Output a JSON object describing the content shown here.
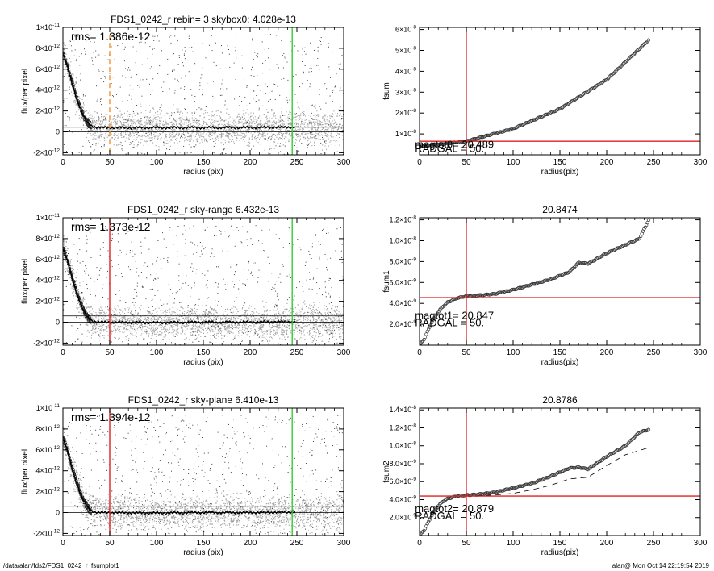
{
  "footer": {
    "left": "/data/alan/fds2/FDS1_0242_r_fsumplot1",
    "right": "alan@  Mon Oct 14 22:19:54 2019"
  },
  "colors": {
    "profile_points": "#a0a0a0",
    "outlier_points": "#404040",
    "sky_radius_line": "#dd2222",
    "dashed_radius_line": "#f0942a",
    "outer_radius_line": "#33cc33",
    "fsum_points": "#333333",
    "crosshair": "#dd2222"
  },
  "chart_data": [
    {
      "type": "scatter",
      "title": "FDS1_0242_r rebin= 3    skybox0:  4.028e-13",
      "annotation": "rms= 1.386e-12",
      "xlabel": "radius (pix)",
      "ylabel": "flux/per pixel",
      "xlim": [
        0,
        300
      ],
      "ylim": [
        -2.2e-12,
        1e-11
      ],
      "xticks": [
        0,
        50,
        100,
        150,
        200,
        250,
        300
      ],
      "xtick_labels": [
        "0",
        "50",
        "100",
        "150",
        "200",
        "250",
        "300"
      ],
      "yticks": [
        -2e-12,
        0,
        2e-12,
        4e-12,
        6e-12,
        8e-12,
        1e-11
      ],
      "ytick_labels": [
        {
          "base": "-2×10",
          "exp": "-12"
        },
        {
          "base": "0",
          "exp": ""
        },
        {
          "base": "2×10",
          "exp": "-12"
        },
        {
          "base": "4×10",
          "exp": "-12"
        },
        {
          "base": "6×10",
          "exp": "-12"
        },
        {
          "base": "8×10",
          "exp": "-12"
        },
        {
          "base": "1×10",
          "exp": "-11"
        }
      ],
      "profile": {
        "radius": [
          0,
          3,
          6,
          10,
          14,
          18,
          22,
          26,
          30,
          35,
          40,
          50,
          100,
          150,
          200,
          245
        ],
        "flux": [
          7.4e-12,
          6.8e-12,
          5.8e-12,
          4.6e-12,
          3.4e-12,
          2.4e-12,
          1.5e-12,
          9e-13,
          6e-13,
          4.5e-13,
          4e-13,
          4e-13,
          4e-13,
          4e-13,
          4.2e-13,
          4.5e-13
        ]
      },
      "profile_wobble": true,
      "sky_level": 4.028e-13,
      "vertical_lines": [
        {
          "x": 50,
          "style": "dashed",
          "color": "#f0942a",
          "top": 9.3e-12
        },
        {
          "x": 245,
          "style": "solid",
          "color": "#33cc33"
        }
      ],
      "horizontal_lines": [
        4.5e-13,
        0.0
      ],
      "grey_band_max": 250,
      "grey_band_end": 300,
      "grey_spread": 1.6e-12,
      "grey_extra_spread_after": 250
    },
    {
      "type": "scatter",
      "title": "",
      "xlabel": "radius(pix)",
      "ylabel": "fsum",
      "xlim": [
        0,
        300
      ],
      "ylim": [
        0,
        6.1e-08
      ],
      "xticks": [
        0,
        50,
        100,
        150,
        200,
        250,
        300
      ],
      "xtick_labels": [
        "0",
        "50",
        "100",
        "150",
        "200",
        "250",
        "300"
      ],
      "yticks": [
        1e-08,
        2e-08,
        3e-08,
        4e-08,
        5e-08,
        6e-08
      ],
      "ytick_labels": [
        {
          "base": "1×10",
          "exp": "-8"
        },
        {
          "base": "2×10",
          "exp": "-8"
        },
        {
          "base": "3×10",
          "exp": "-8"
        },
        {
          "base": "4×10",
          "exp": "-8"
        },
        {
          "base": "5×10",
          "exp": "-8"
        },
        {
          "base": "6×10",
          "exp": "-8"
        }
      ],
      "curve": {
        "x": [
          0,
          20,
          50,
          100,
          150,
          200,
          245
        ],
        "y": [
          4.2e-09,
          5e-09,
          6.5e-09,
          1.25e-08,
          2.2e-08,
          3.6e-08,
          5.5e-08
        ]
      },
      "crosshair": {
        "x": 50,
        "y": 6.5e-09
      },
      "annotations": [
        {
          "text": "magtot0=  20.489",
          "x": -5,
          "y": 3.2e-09
        },
        {
          "text": "RADGAL =    50.",
          "x": -5,
          "y": 1.4e-09
        }
      ]
    },
    {
      "type": "scatter",
      "title": "FDS1_0242_r sky-range  6.432e-13",
      "annotation": "rms= 1.373e-12",
      "xlabel": "radius (pix)",
      "ylabel": "flux/per pixel",
      "xlim": [
        0,
        300
      ],
      "ylim": [
        -2.2e-12,
        1e-11
      ],
      "xticks": [
        0,
        50,
        100,
        150,
        200,
        250,
        300
      ],
      "xtick_labels": [
        "0",
        "50",
        "100",
        "150",
        "200",
        "250",
        "300"
      ],
      "yticks": [
        -2e-12,
        0,
        2e-12,
        4e-12,
        6e-12,
        8e-12,
        1e-11
      ],
      "ytick_labels": [
        {
          "base": "-2×10",
          "exp": "-12"
        },
        {
          "base": "0",
          "exp": ""
        },
        {
          "base": "2×10",
          "exp": "-12"
        },
        {
          "base": "4×10",
          "exp": "-12"
        },
        {
          "base": "6×10",
          "exp": "-12"
        },
        {
          "base": "8×10",
          "exp": "-12"
        },
        {
          "base": "1×10",
          "exp": "-11"
        }
      ],
      "profile": {
        "radius": [
          0,
          3,
          6,
          10,
          14,
          18,
          22,
          26,
          30,
          35,
          40,
          50,
          100,
          150,
          200,
          245
        ],
        "flux": [
          7e-12,
          6.4e-12,
          5.4e-12,
          4.2e-12,
          3e-12,
          2e-12,
          1.1e-12,
          5e-13,
          2e-13,
          5e-14,
          0.0,
          0.0,
          -5e-14,
          0.0,
          0.0,
          5e-14
        ]
      },
      "profile_wobble": true,
      "sky_level": 6.432e-13,
      "vertical_lines": [
        {
          "x": 50,
          "style": "solid",
          "color": "#dd2222"
        },
        {
          "x": 245,
          "style": "solid",
          "color": "#33cc33"
        }
      ],
      "horizontal_lines": [
        6e-13,
        0.0
      ],
      "grey_band_max": 250,
      "grey_band_end": 300,
      "grey_spread": 1.6e-12,
      "grey_extra_spread_after": 250
    },
    {
      "type": "scatter",
      "title": "20.8474",
      "xlabel": "radius(pix)",
      "ylabel": "fsum1",
      "xlim": [
        0,
        300
      ],
      "ylim": [
        0,
        1.22e-08
      ],
      "xticks": [
        0,
        50,
        100,
        150,
        200,
        250,
        300
      ],
      "xtick_labels": [
        "0",
        "50",
        "100",
        "150",
        "200",
        "250",
        "300"
      ],
      "yticks": [
        2e-09,
        4e-09,
        6e-09,
        8e-09,
        1e-08,
        1.2e-08
      ],
      "ytick_labels": [
        {
          "base": "2.0×10",
          "exp": "-9"
        },
        {
          "base": "4.0×10",
          "exp": "-9"
        },
        {
          "base": "6.0×10",
          "exp": "-9"
        },
        {
          "base": "8.0×10",
          "exp": "-9"
        },
        {
          "base": "1.0×10",
          "exp": "-8"
        },
        {
          "base": "1.2×10",
          "exp": "-8"
        }
      ],
      "curve": {
        "x": [
          0,
          5,
          10,
          15,
          20,
          25,
          30,
          40,
          50,
          60,
          80,
          100,
          120,
          140,
          160,
          170,
          180,
          200,
          220,
          235,
          245
        ],
        "y": [
          0,
          6e-10,
          1.6e-09,
          2.5e-09,
          3.2e-09,
          3.7e-09,
          4.1e-09,
          4.5e-09,
          4.7e-09,
          4.75e-09,
          4.9e-09,
          5.3e-09,
          5.8e-09,
          6.3e-09,
          7e-09,
          7.9e-09,
          7.8e-09,
          8.8e-09,
          9.6e-09,
          1.02e-08,
          1.2e-08
        ]
      },
      "crosshair": {
        "x": 50,
        "y": 4.55e-09
      },
      "annotations": [
        {
          "text": "magtot1=  20.847",
          "x": -5,
          "y": 2.5e-09
        },
        {
          "text": "RADGAL =    50.",
          "x": -5,
          "y": 1.8e-09
        }
      ]
    },
    {
      "type": "scatter",
      "title": "FDS1_0242_r sky-plane  6.410e-13",
      "annotation": "rms= 1.394e-12",
      "xlabel": "radius (pix)",
      "ylabel": "flux/per pixel",
      "xlim": [
        0,
        300
      ],
      "ylim": [
        -2.2e-12,
        1e-11
      ],
      "xticks": [
        0,
        50,
        100,
        150,
        200,
        250,
        300
      ],
      "xtick_labels": [
        "0",
        "50",
        "100",
        "150",
        "200",
        "250",
        "300"
      ],
      "yticks": [
        -2e-12,
        0,
        2e-12,
        4e-12,
        6e-12,
        8e-12,
        1e-11
      ],
      "ytick_labels": [
        {
          "base": "-2×10",
          "exp": "-12"
        },
        {
          "base": "0",
          "exp": ""
        },
        {
          "base": "2×10",
          "exp": "-12"
        },
        {
          "base": "4×10",
          "exp": "-12"
        },
        {
          "base": "6×10",
          "exp": "-12"
        },
        {
          "base": "8×10",
          "exp": "-12"
        },
        {
          "base": "1×10",
          "exp": "-11"
        }
      ],
      "profile": {
        "radius": [
          0,
          3,
          6,
          10,
          14,
          18,
          22,
          26,
          30,
          35,
          40,
          50,
          100,
          150,
          200,
          245
        ],
        "flux": [
          7e-12,
          6.4e-12,
          5.4e-12,
          4.2e-12,
          3e-12,
          2e-12,
          1.1e-12,
          5e-13,
          2e-13,
          5e-14,
          0.0,
          0.0,
          -5e-14,
          0.0,
          0.0,
          5e-14
        ]
      },
      "profile_wobble": true,
      "sky_level": 6.41e-13,
      "vertical_lines": [
        {
          "x": 50,
          "style": "solid",
          "color": "#dd2222"
        },
        {
          "x": 245,
          "style": "solid",
          "color": "#33cc33"
        }
      ],
      "horizontal_lines": [
        6e-13,
        0.0
      ],
      "grey_band_max": 250,
      "grey_band_end": 300,
      "grey_spread": 1.6e-12,
      "grey_extra_spread_after": 250
    },
    {
      "type": "scatter",
      "title": "20.8786",
      "xlabel": "radius(pix)",
      "ylabel": "fsum2",
      "xlim": [
        0,
        300
      ],
      "ylim": [
        0,
        1.42e-08
      ],
      "xticks": [
        0,
        50,
        100,
        150,
        200,
        250,
        300
      ],
      "xtick_labels": [
        "0",
        "50",
        "100",
        "150",
        "200",
        "250",
        "300"
      ],
      "yticks": [
        2e-09,
        4e-09,
        6e-09,
        8e-09,
        1e-08,
        1.2e-08,
        1.4e-08
      ],
      "ytick_labels": [
        {
          "base": "2.0×10",
          "exp": "-9"
        },
        {
          "base": "4.0×10",
          "exp": "-9"
        },
        {
          "base": "6.0×10",
          "exp": "-9"
        },
        {
          "base": "8.0×10",
          "exp": "-9"
        },
        {
          "base": "1.0×10",
          "exp": "-8"
        },
        {
          "base": "1.2×10",
          "exp": "-8"
        },
        {
          "base": "1.4×10",
          "exp": "-8"
        }
      ],
      "curve": {
        "x": [
          0,
          5,
          10,
          15,
          20,
          25,
          30,
          40,
          50,
          60,
          80,
          100,
          120,
          140,
          160,
          170,
          180,
          200,
          220,
          235,
          245
        ],
        "y": [
          0,
          6e-10,
          1.6e-09,
          2.6e-09,
          3.3e-09,
          3.8e-09,
          4.1e-09,
          4.4e-09,
          4.5e-09,
          4.55e-09,
          4.8e-09,
          5.3e-09,
          5.8e-09,
          6.6e-09,
          7.5e-09,
          7.6e-09,
          7.4e-09,
          8.8e-09,
          1e-08,
          1.15e-08,
          1.18e-08
        ]
      },
      "dashed_curve": {
        "x": [
          50,
          80,
          100,
          120,
          140,
          160,
          180,
          200,
          220,
          245
        ],
        "y": [
          4.4e-09,
          4.5e-09,
          4.7e-09,
          5.1e-09,
          5.6e-09,
          6.3e-09,
          6.5e-09,
          7.8e-09,
          9e-09,
          9.8e-09
        ]
      },
      "crosshair": {
        "x": 50,
        "y": 4.4e-09
      },
      "annotations": [
        {
          "text": "magtot2=  20.879",
          "x": -5,
          "y": 2.6e-09
        },
        {
          "text": "RADGAL =    50.",
          "x": -5,
          "y": 1.8e-09
        }
      ]
    }
  ]
}
